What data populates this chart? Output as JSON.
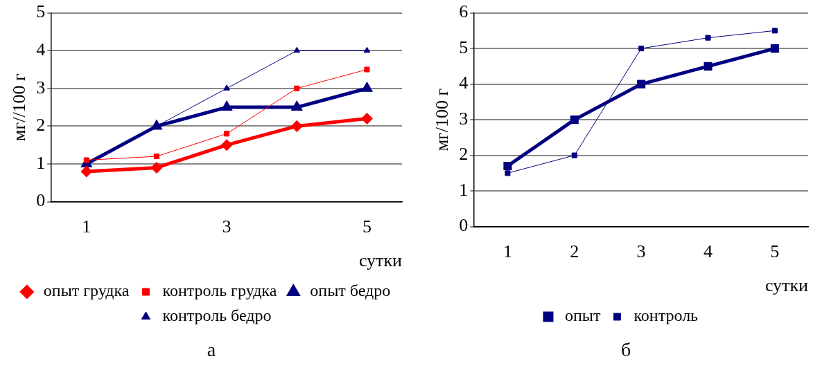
{
  "chart_data": [
    {
      "type": "line",
      "categories": [
        "1",
        null,
        "3",
        null,
        "5"
      ],
      "xlabel": "сутки",
      "ylabel": "мг//100 г",
      "ylim": [
        0,
        5
      ],
      "yticks": [
        0,
        1,
        2,
        3,
        4,
        5
      ],
      "grid": "y",
      "legend": "bottom",
      "annotations": [
        "а"
      ],
      "series": [
        {
          "name": "опыт грудка",
          "color": "#ff0000",
          "marker": "diamond",
          "values": [
            0.8,
            0.9,
            1.5,
            2.0,
            2.2
          ]
        },
        {
          "name": "контроль грудка",
          "color": "#ff0000",
          "marker": "square",
          "values": [
            1.1,
            1.2,
            1.8,
            3.0,
            3.5
          ]
        },
        {
          "name": "опыт бедро",
          "color": "#000080",
          "marker": "triangle",
          "values": [
            1.0,
            2.0,
            2.5,
            2.5,
            3.0
          ]
        },
        {
          "name": "контроль бедро",
          "color": "#000080",
          "marker": "triangle",
          "values": [
            1.0,
            2.0,
            3.0,
            4.0,
            4.0
          ]
        }
      ]
    },
    {
      "type": "line",
      "categories": [
        "1",
        "2",
        "3",
        "4",
        "5"
      ],
      "xlabel": "сутки",
      "ylabel": "мг/100 г",
      "ylim": [
        0,
        6
      ],
      "yticks": [
        0,
        1,
        2,
        3,
        4,
        5,
        6
      ],
      "grid": "y",
      "legend": "bottom",
      "annotations": [
        "б"
      ],
      "series": [
        {
          "name": "опыт",
          "color": "#000080",
          "marker": "square",
          "values": [
            1.7,
            3.0,
            4.0,
            4.5,
            5.0
          ]
        },
        {
          "name": "контроль",
          "color": "#000080",
          "marker": "square",
          "values": [
            1.5,
            2.0,
            5.0,
            5.3,
            5.5
          ]
        }
      ]
    }
  ]
}
